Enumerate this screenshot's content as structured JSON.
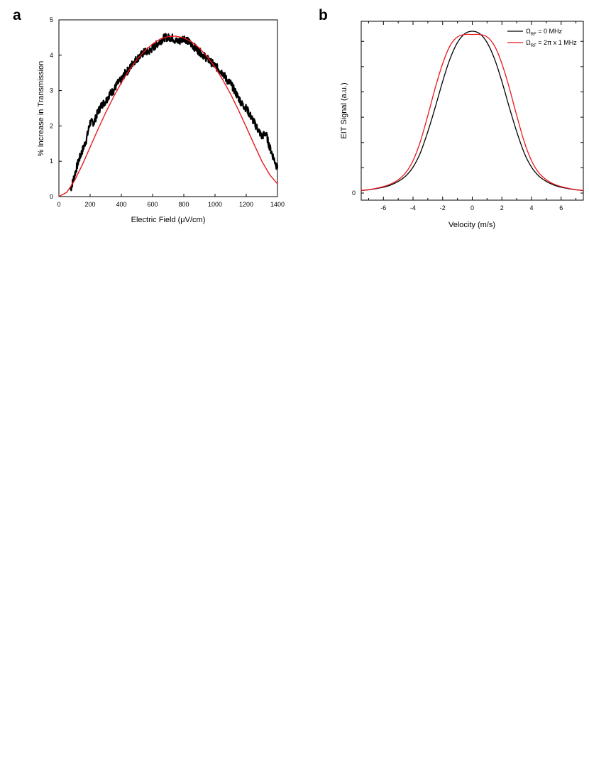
{
  "panels": {
    "a": "a",
    "b": "b"
  },
  "chart_data": [
    {
      "type": "line",
      "panel": "a",
      "xlabel": "Electric Field (μV/cm)",
      "ylabel": "% Increase in Transmission",
      "xlim": [
        0,
        1400
      ],
      "ylim": [
        0,
        5
      ],
      "xticks": [
        0,
        200,
        400,
        600,
        800,
        1000,
        1200,
        1400
      ],
      "yticks": [
        0,
        1,
        2,
        3,
        4,
        5
      ],
      "series": [
        {
          "color": "#000000",
          "style": "noisy measured data band",
          "x": [
            75,
            100,
            125,
            150,
            175,
            200,
            225,
            250,
            275,
            300,
            325,
            350,
            375,
            400,
            425,
            450,
            475,
            500,
            525,
            550,
            575,
            600,
            625,
            650,
            675,
            700,
            725,
            750,
            775,
            800,
            825,
            850,
            875,
            900,
            925,
            950,
            975,
            1000,
            1025,
            1050,
            1075,
            1100,
            1125,
            1150,
            1175,
            1200,
            1225,
            1250,
            1275,
            1300,
            1325,
            1350,
            1375,
            1400
          ],
          "y": [
            0.2,
            0.6,
            1.0,
            1.3,
            1.6,
            2.1,
            2.1,
            2.4,
            2.6,
            2.7,
            2.9,
            3.0,
            3.2,
            3.3,
            3.5,
            3.6,
            3.8,
            3.9,
            4.0,
            4.1,
            4.1,
            4.2,
            4.3,
            4.4,
            4.5,
            4.5,
            4.5,
            4.4,
            4.4,
            4.5,
            4.4,
            4.3,
            4.2,
            4.1,
            4.0,
            3.9,
            3.8,
            3.7,
            3.6,
            3.5,
            3.3,
            3.2,
            3.0,
            2.8,
            2.6,
            2.5,
            2.3,
            2.1,
            1.9,
            1.7,
            1.8,
            1.4,
            1.1,
            0.8
          ]
        },
        {
          "color": "#e8181d",
          "style": "smooth fit",
          "x": [
            0,
            50,
            100,
            150,
            200,
            250,
            300,
            350,
            400,
            450,
            500,
            550,
            600,
            650,
            700,
            750,
            800,
            850,
            900,
            950,
            1000,
            1050,
            1100,
            1150,
            1200,
            1250,
            1300,
            1350,
            1400
          ],
          "y": [
            0.0,
            0.12,
            0.45,
            0.9,
            1.4,
            1.9,
            2.38,
            2.82,
            3.22,
            3.58,
            3.88,
            4.12,
            4.32,
            4.46,
            4.53,
            4.54,
            4.49,
            4.38,
            4.2,
            3.96,
            3.66,
            3.3,
            2.9,
            2.45,
            1.97,
            1.48,
            1.0,
            0.62,
            0.36
          ]
        }
      ]
    },
    {
      "type": "line",
      "panel": "b",
      "xlabel": "Velocity (m/s)",
      "ylabel": "EIT Signal (a.u.)",
      "xlim": [
        -7.5,
        7.5
      ],
      "ylim": [
        0,
        1.0
      ],
      "xticks": [
        -6,
        -4,
        -2,
        0,
        2,
        4,
        6
      ],
      "yticks": [
        0
      ],
      "legend_position": "top-right",
      "series": [
        {
          "name": "Ω_RF = 0 MHz",
          "legend_symbol": "Ω",
          "legend_sub": "RF",
          "legend_rest": " = 0 MHz",
          "color": "#000000",
          "x": [
            -7.5,
            -7,
            -6.5,
            -6,
            -5.5,
            -5,
            -4.5,
            -4,
            -3.5,
            -3,
            -2.5,
            -2,
            -1.5,
            -1,
            -0.5,
            0,
            0.5,
            1,
            1.5,
            2,
            2.5,
            3,
            3.5,
            4,
            4.5,
            5,
            5.5,
            6,
            6.5,
            7,
            7.5
          ],
          "y": [
            0.015,
            0.02,
            0.027,
            0.036,
            0.05,
            0.072,
            0.105,
            0.16,
            0.25,
            0.38,
            0.53,
            0.69,
            0.83,
            0.93,
            0.985,
            1.0,
            0.985,
            0.93,
            0.83,
            0.69,
            0.53,
            0.38,
            0.25,
            0.16,
            0.105,
            0.072,
            0.05,
            0.036,
            0.027,
            0.02,
            0.015
          ]
        },
        {
          "name": "Ω_RF = 2π x 1 MHz",
          "legend_symbol": "Ω",
          "legend_sub": "RF",
          "legend_rest": " = 2π x 1 MHz",
          "color": "#e8181d",
          "x": [
            -7.5,
            -7,
            -6.5,
            -6,
            -5.5,
            -5,
            -4.5,
            -4,
            -3.5,
            -3,
            -2.5,
            -2,
            -1.5,
            -1,
            -0.5,
            0,
            0.5,
            1,
            1.5,
            2,
            2.5,
            3,
            3.5,
            4,
            4.5,
            5,
            5.5,
            6,
            6.5,
            7,
            7.5
          ],
          "y": [
            0.016,
            0.021,
            0.029,
            0.04,
            0.056,
            0.082,
            0.125,
            0.2,
            0.32,
            0.48,
            0.65,
            0.8,
            0.91,
            0.965,
            0.98,
            0.98,
            0.98,
            0.965,
            0.91,
            0.8,
            0.65,
            0.48,
            0.32,
            0.2,
            0.125,
            0.082,
            0.056,
            0.04,
            0.029,
            0.021,
            0.016
          ]
        }
      ]
    }
  ]
}
